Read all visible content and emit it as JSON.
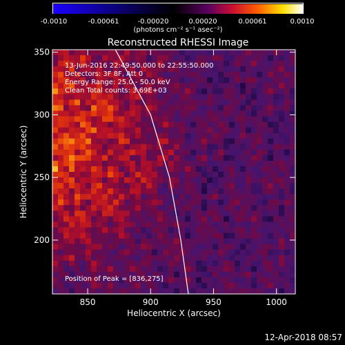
{
  "colorbar": {
    "tick_labels": [
      "-0.0010",
      "-0.00061",
      "-0.00020",
      "0.00020",
      "0.00061",
      "0.0010"
    ],
    "units": "(photons cm⁻² s⁻¹ asec⁻²)",
    "colors": [
      "#1a00ff",
      "#000000",
      "#5a0060",
      "#cc1030",
      "#ff6000",
      "#ffe000",
      "#ffffff"
    ]
  },
  "chart_data": {
    "type": "heatmap",
    "title": "Reconstructed RHESSI Image",
    "xlabel": "Heliocentric X (arcsec)",
    "ylabel": "Heliocentric Y (arcsec)",
    "xlim": [
      822,
      1015
    ],
    "ylim": [
      157,
      352
    ],
    "x_ticks": [
      850,
      900,
      950,
      1000
    ],
    "y_ticks": [
      200,
      250,
      300,
      350
    ],
    "annotations": [
      "13-Jun-2016 22:49:50.000 to 22:55:50.000",
      "Detectors: 3F 8F, Att 0",
      "Energy Range: 25.0 - 50.0 keV",
      "Clean    Total counts: 3.69E+03"
    ],
    "peak_label": "Position of Peak = [836,275]",
    "peak_position": [
      836,
      275
    ],
    "limb_curve": [
      [
        872,
        352
      ],
      [
        900,
        300
      ],
      [
        915,
        250
      ],
      [
        924,
        200
      ],
      [
        930,
        157
      ]
    ]
  },
  "footer": {
    "timestamp": "12-Apr-2018 08:57"
  }
}
